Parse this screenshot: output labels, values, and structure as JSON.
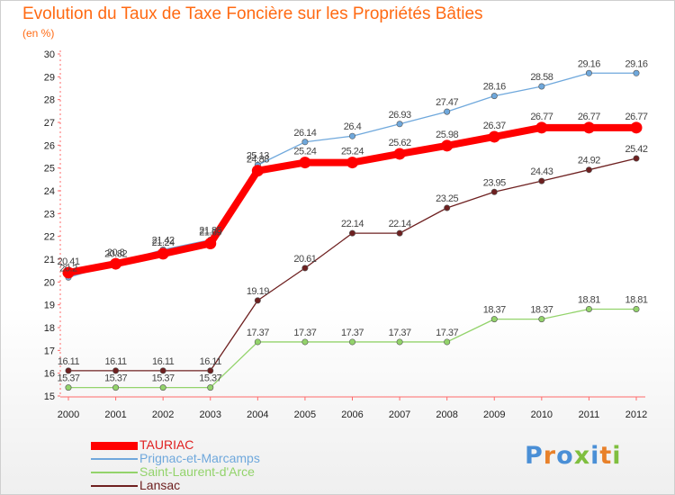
{
  "page": {
    "title": "Evolution du Taux de Taxe Foncière sur les Propriétés Bâties",
    "unit": "(en %)",
    "logo": {
      "text": "Proxiti",
      "letter_colors": [
        "#4a8fd6",
        "#e8812a",
        "#4a8fd6",
        "#7fbf3f",
        "#4a8fd6",
        "#e8812a",
        "#7fbf3f"
      ]
    }
  },
  "chart_data": {
    "type": "line",
    "title": "Evolution du Taux de Taxe Foncière sur les Propriétés Bâties",
    "ylabel": "(en %)",
    "xlabel": "",
    "x": [
      "2000",
      "2001",
      "2002",
      "2003",
      "2004",
      "2005",
      "2006",
      "2007",
      "2008",
      "2009",
      "2010",
      "2011",
      "2012"
    ],
    "ylim": [
      15,
      30
    ],
    "yticks": [
      15,
      16,
      17,
      18,
      19,
      20,
      21,
      22,
      23,
      24,
      25,
      26,
      27,
      28,
      29,
      30
    ],
    "grid": false,
    "legend_position": "bottom-left",
    "series": [
      {
        "name": "TAURIAC",
        "color": "#ff0000",
        "values": [
          20.41,
          20.8,
          21.24,
          21.69,
          24.88,
          25.24,
          25.24,
          25.62,
          25.98,
          26.37,
          26.77,
          26.77,
          26.77
        ],
        "labels": [
          "20.41",
          "20.8",
          "21.24",
          "21.69",
          "24.88",
          "25.24",
          "25.24",
          "25.62",
          "25.98",
          "26.37",
          "26.77",
          "26.77",
          "26.77"
        ],
        "emphasized": true
      },
      {
        "name": "Prignac-et-Marcamps",
        "color": "#6fa8dc",
        "values": [
          20.2,
          20.82,
          21.42,
          21.85,
          25.13,
          26.14,
          26.4,
          26.93,
          27.47,
          28.16,
          28.58,
          29.16,
          29.16
        ],
        "labels": [
          "20.2",
          "20.82",
          "21.42",
          "21.85",
          "25.13",
          "26.14",
          "26.4",
          "26.93",
          "27.47",
          "28.16",
          "28.58",
          "29.16",
          "29.16"
        ],
        "emphasized": false
      },
      {
        "name": "Saint-Laurent-d'Arce",
        "color": "#93d36b",
        "values": [
          15.37,
          15.37,
          15.37,
          15.37,
          17.37,
          17.37,
          17.37,
          17.37,
          17.37,
          18.37,
          18.37,
          18.81,
          18.81
        ],
        "labels": [
          "15.37",
          "15.37",
          "15.37",
          "15.37",
          "17.37",
          "17.37",
          "17.37",
          "17.37",
          "17.37",
          "18.37",
          "18.37",
          "18.81",
          "18.81"
        ],
        "emphasized": false
      },
      {
        "name": "Lansac",
        "color": "#6e2020",
        "values": [
          16.11,
          16.11,
          16.11,
          16.11,
          19.19,
          20.61,
          22.14,
          22.14,
          23.25,
          23.95,
          24.43,
          24.92,
          25.42
        ],
        "labels": [
          "16.11",
          "16.11",
          "16.11",
          "16.11",
          "19.19",
          "20.61",
          "22.14",
          "22.14",
          "23.25",
          "23.95",
          "24.43",
          "24.92",
          "25.42"
        ],
        "emphasized": false
      }
    ]
  }
}
